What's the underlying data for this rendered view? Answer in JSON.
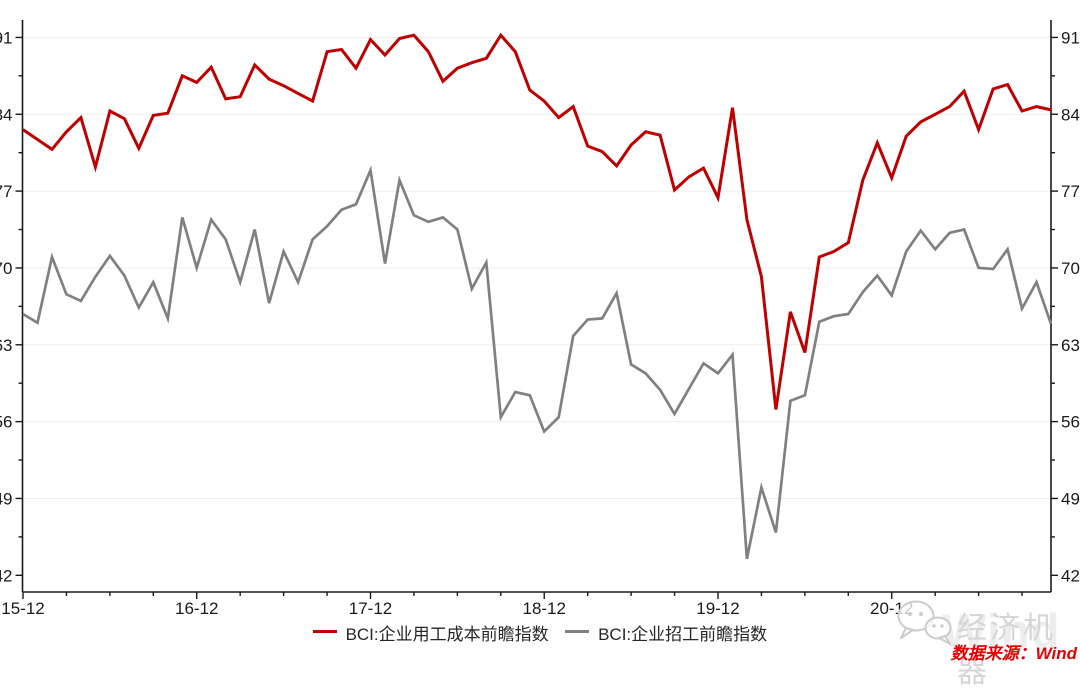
{
  "chart_data": {
    "type": "line",
    "title": "",
    "frequency": "monthly",
    "x_start": "2015-12",
    "x_end": "2021-11",
    "x_tick_labels": [
      "15-12",
      "16-12",
      "17-12",
      "18-12",
      "19-12",
      "20-12"
    ],
    "x_tick_month_indices": [
      0,
      12,
      24,
      36,
      48,
      60
    ],
    "y_ticks": [
      42,
      49,
      56,
      63,
      70,
      77,
      84,
      91
    ],
    "ylim": [
      40.5,
      92.5
    ],
    "grid": "horizontal-faint",
    "legend_position": "bottom-center",
    "series": [
      {
        "name": "BCI:企业用工成本前瞻指数",
        "color": "#c00000",
        "values": [
          82.6,
          81.7,
          80.8,
          82.4,
          83.7,
          79.2,
          84.3,
          83.6,
          80.9,
          83.9,
          84.1,
          87.5,
          86.9,
          88.3,
          85.4,
          85.6,
          88.5,
          87.2,
          86.6,
          85.9,
          85.2,
          89.7,
          89.9,
          88.2,
          90.8,
          89.4,
          90.9,
          91.2,
          89.7,
          87.0,
          88.2,
          88.7,
          89.1,
          91.2,
          89.7,
          86.2,
          85.2,
          83.7,
          84.7,
          81.1,
          80.6,
          79.3,
          81.2,
          82.4,
          82.1,
          77.1,
          78.3,
          79.1,
          76.4,
          84.6,
          74.4,
          69.2,
          57.1,
          66.0,
          62.3,
          71.0,
          71.5,
          72.3,
          78.0,
          81.4,
          78.2,
          82.0,
          83.3,
          84.0,
          84.7,
          86.1,
          82.6,
          86.3,
          86.7,
          84.3,
          84.7,
          84.4
        ]
      },
      {
        "name": "BCI:企业招工前瞻指数",
        "color": "#808080",
        "values": [
          65.8,
          65.0,
          71.0,
          67.6,
          67.0,
          69.2,
          71.1,
          69.3,
          66.4,
          68.7,
          65.4,
          74.6,
          70.0,
          74.4,
          72.6,
          68.7,
          73.5,
          66.8,
          71.5,
          68.7,
          72.6,
          73.8,
          75.3,
          75.8,
          78.9,
          70.4,
          78.0,
          74.8,
          74.2,
          74.6,
          73.5,
          68.1,
          70.5,
          56.4,
          58.7,
          58.4,
          55.1,
          56.4,
          63.8,
          65.3,
          65.4,
          67.7,
          61.2,
          60.4,
          58.9,
          56.7,
          59.0,
          61.3,
          60.4,
          62.1,
          43.5,
          50.0,
          45.9,
          57.9,
          58.4,
          65.1,
          65.6,
          65.8,
          67.8,
          69.3,
          67.5,
          71.5,
          73.4,
          71.7,
          73.2,
          73.5,
          70.0,
          69.9,
          71.7,
          66.3,
          68.7,
          64.9
        ]
      }
    ]
  },
  "watermark": {
    "brand": "经济机器",
    "background_word": "Wind",
    "source_note": "数据来源：Wind"
  },
  "colors": {
    "axis": "#1a1a1a",
    "gridline": "#ededed",
    "tick_label": "#1a1a1a",
    "background": "#ffffff",
    "source_note_red": "#e60000",
    "watermark_gray": "#d6d6d6"
  }
}
